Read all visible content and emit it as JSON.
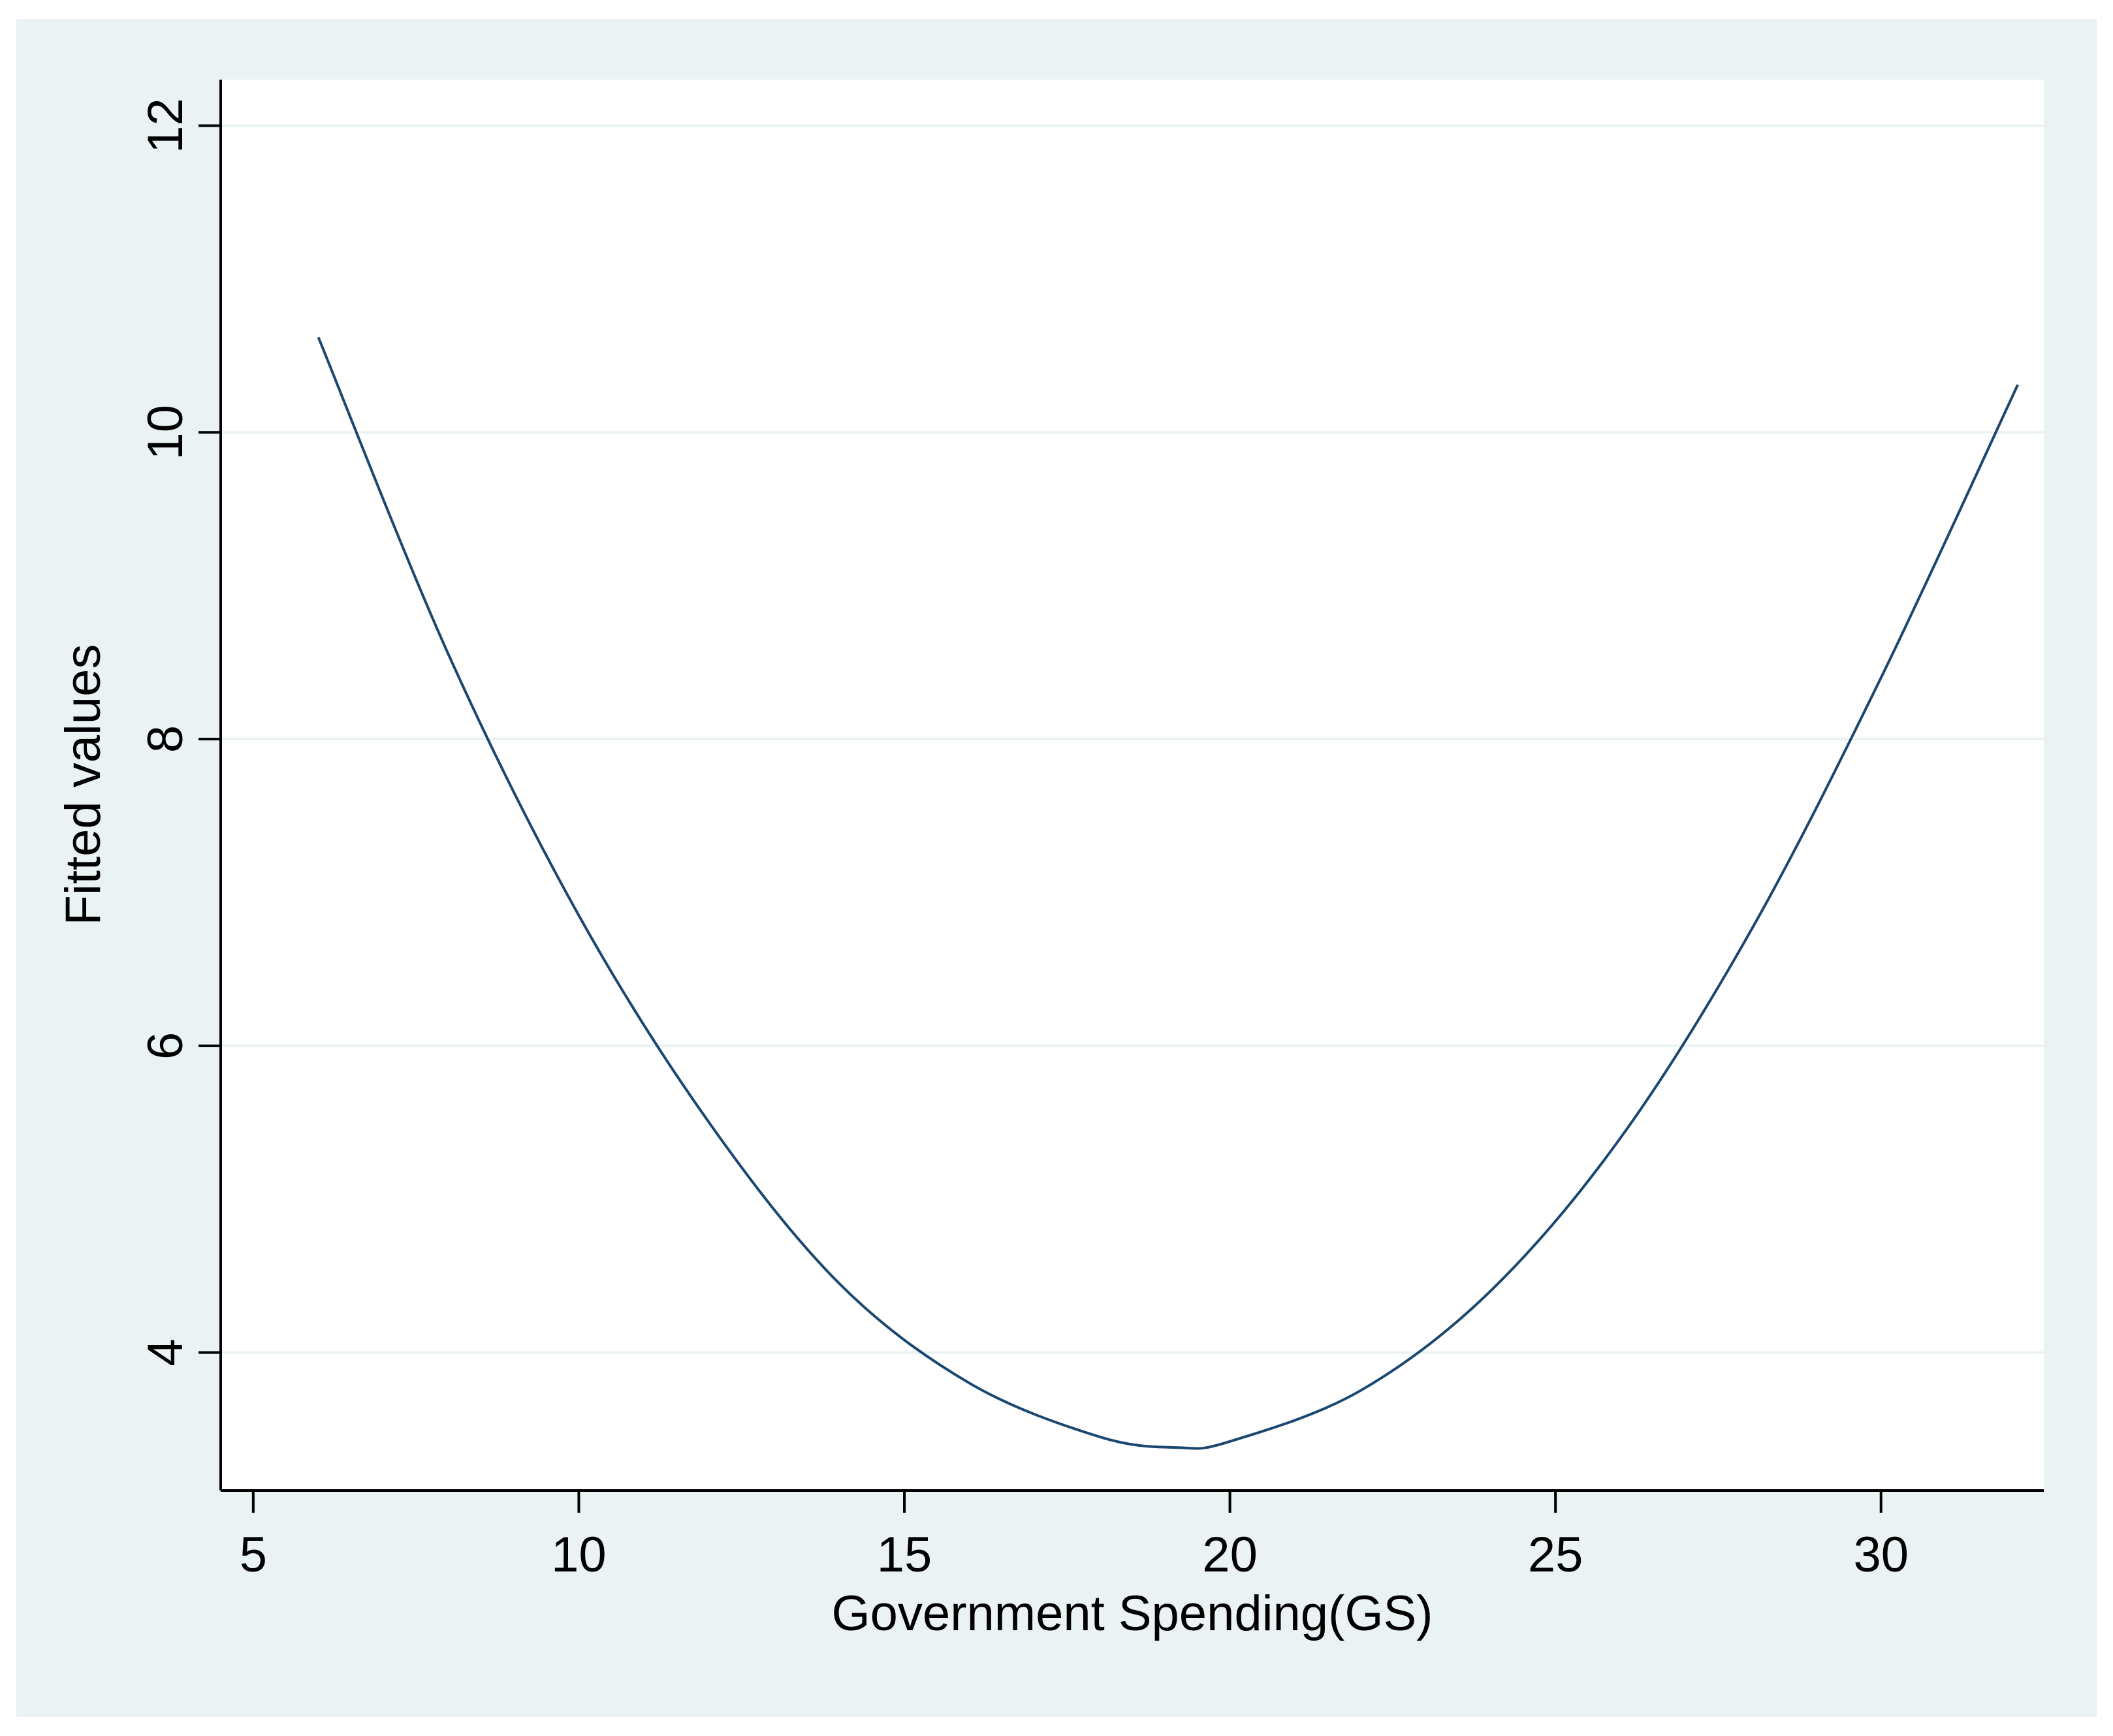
{
  "colors": {
    "outer_background": "#eaf2f3",
    "plot_background": "#ffffff",
    "gridline": "#eaf2f3",
    "axis": "#000000",
    "series_line": "#1a476f"
  },
  "chart_data": {
    "type": "line",
    "title": "",
    "xlabel": "Government Spending(GS)",
    "ylabel": "Fitted values",
    "xlim": [
      4.5,
      32.5
    ],
    "ylim": [
      3.1,
      12.3
    ],
    "xticks": [
      5,
      10,
      15,
      20,
      25,
      30
    ],
    "xtick_labels": [
      "5",
      "10",
      "15",
      "20",
      "25",
      "30"
    ],
    "yticks": [
      4,
      6,
      8,
      10,
      12
    ],
    "ytick_labels": [
      "4",
      "6",
      "8",
      "10",
      "12"
    ],
    "grid": "horizontal",
    "legend": "none",
    "series": [
      {
        "x": [
          6,
          8,
          10,
          12,
          14,
          16,
          18,
          19.2,
          20,
          22,
          24,
          26,
          28,
          30,
          32.1
        ],
        "y": [
          10.62,
          8.55,
          6.85,
          5.5,
          4.45,
          3.8,
          3.45,
          3.38,
          3.42,
          3.75,
          4.4,
          5.4,
          6.75,
          8.4,
          10.31
        ]
      }
    ]
  }
}
